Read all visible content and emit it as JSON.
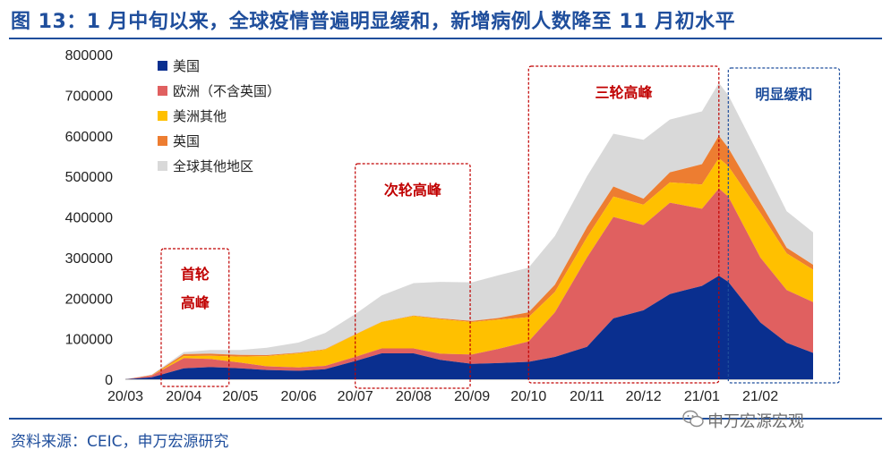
{
  "header": {
    "title": "图 13：1 月中旬以来，全球疫情普遍明显缓和，新增病例人数降至 11 月初水平"
  },
  "footer": {
    "source": "资料来源：CEIC，申万宏源研究",
    "watermark": "申万宏源宏观"
  },
  "colors": {
    "us": "#0a2f8f",
    "europe": "#e06060",
    "americas_other": "#ffc000",
    "uk": "#ed7d31",
    "rest": "#d9d9d9",
    "box_red": "#c00000",
    "box_blue": "#1f4e9c"
  },
  "chart_data": {
    "type": "area",
    "stacked": true,
    "title": "",
    "xlabel": "",
    "ylabel": "",
    "ylim": [
      0,
      800000
    ],
    "yticks": [
      "0",
      "100000",
      "200000",
      "300000",
      "400000",
      "500000",
      "600000",
      "700000",
      "800000"
    ],
    "xticks": [
      "20/03",
      "20/04",
      "20/05",
      "20/06",
      "20/07",
      "20/08",
      "20/09",
      "20/10",
      "20/11",
      "20/12",
      "21/01",
      "21/02"
    ],
    "legend_position": "top-left",
    "x": [
      "20/03/01",
      "20/03/15",
      "20/04/01",
      "20/04/15",
      "20/05/01",
      "20/05/15",
      "20/06/01",
      "20/06/15",
      "20/07/01",
      "20/07/15",
      "20/08/01",
      "20/08/15",
      "20/09/01",
      "20/09/15",
      "20/10/01",
      "20/10/15",
      "20/11/01",
      "20/11/15",
      "20/12/01",
      "20/12/15",
      "21/01/01",
      "21/01/10",
      "21/01/15",
      "21/02/01",
      "21/02/15",
      "21/03/01"
    ],
    "series": [
      {
        "name": "美国",
        "key": "us",
        "values": [
          0,
          5000,
          27000,
          30000,
          27000,
          23000,
          21000,
          25000,
          45000,
          64000,
          64000,
          48000,
          38000,
          40000,
          43000,
          55000,
          80000,
          150000,
          170000,
          210000,
          230000,
          255000,
          240000,
          140000,
          90000,
          65000
        ]
      },
      {
        "name": "欧洲（不含英国）",
        "key": "europe",
        "values": [
          0,
          4000,
          25000,
          20000,
          14000,
          9000,
          8000,
          8000,
          10000,
          12000,
          12000,
          15000,
          23000,
          35000,
          50000,
          110000,
          220000,
          250000,
          210000,
          225000,
          190000,
          215000,
          210000,
          160000,
          130000,
          125000
        ]
      },
      {
        "name": "美洲其他",
        "key": "americas_other",
        "values": [
          0,
          500,
          5000,
          8000,
          15000,
          25000,
          35000,
          40000,
          55000,
          65000,
          80000,
          85000,
          80000,
          72000,
          60000,
          50000,
          50000,
          50000,
          50000,
          50000,
          60000,
          75000,
          75000,
          110000,
          90000,
          80000
        ]
      },
      {
        "name": "英国",
        "key": "uk",
        "values": [
          0,
          1000,
          5000,
          5000,
          4000,
          2500,
          1500,
          1000,
          700,
          800,
          1000,
          2000,
          3000,
          4000,
          12000,
          18000,
          25000,
          25000,
          15000,
          25000,
          50000,
          55000,
          45000,
          25000,
          14000,
          12000
        ]
      },
      {
        "name": "全球其他地区",
        "key": "rest",
        "values": [
          0,
          1000,
          5000,
          9000,
          12000,
          18000,
          25000,
          40000,
          50000,
          65000,
          80000,
          90000,
          95000,
          105000,
          110000,
          120000,
          125000,
          130000,
          145000,
          130000,
          130000,
          130000,
          130000,
          110000,
          90000,
          80000
        ]
      }
    ],
    "annotations": [
      {
        "text": [
          "首轮",
          "高峰"
        ],
        "color": "box_red",
        "x_from": "20/03/20",
        "x_to": "20/04/25"
      },
      {
        "text": [
          "次轮高峰"
        ],
        "color": "box_red",
        "x_from": "20/07/01",
        "x_to": "20/08/31"
      },
      {
        "text": [
          "三轮高峰"
        ],
        "color": "box_red",
        "x_from": "20/10/01",
        "x_to": "21/01/10"
      },
      {
        "text": [
          "明显缓和"
        ],
        "color": "box_blue",
        "x_from": "21/01/15",
        "x_to": "21/03/15"
      }
    ]
  }
}
